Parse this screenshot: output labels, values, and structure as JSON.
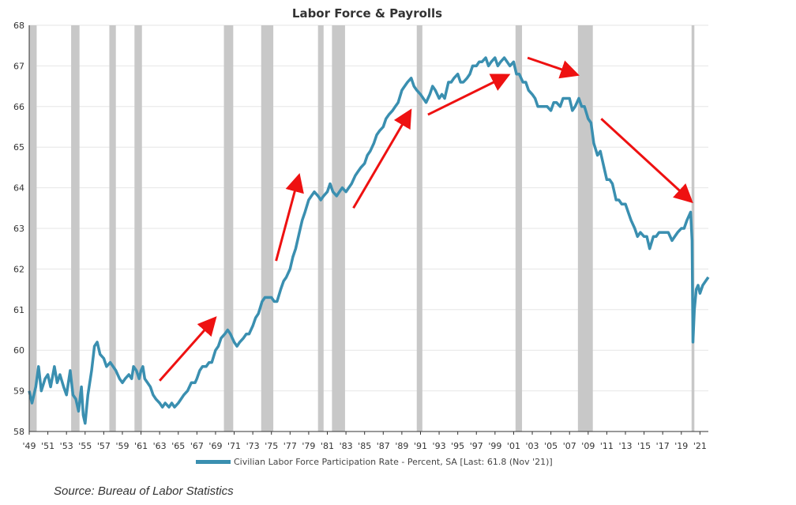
{
  "colors": {
    "line": "#3a8fb0",
    "recession": "#c8c8c8",
    "arrow": "#ee1111",
    "grid": "#e6e6e6",
    "axis": "#333333"
  },
  "source": "Source:  Bureau of Labor Statistics",
  "chart_data": {
    "type": "line",
    "title": "Labor Force & Payrolls",
    "xlabel": "",
    "ylabel": "",
    "xlim": [
      1949,
      2021.9
    ],
    "ylim": [
      58,
      68
    ],
    "y_ticks": [
      "58",
      "59",
      "60",
      "61",
      "62",
      "63",
      "64",
      "65",
      "66",
      "67",
      "68"
    ],
    "x_ticks": [
      {
        "year": 1949,
        "label": "'49"
      },
      {
        "year": 1951,
        "label": "'51"
      },
      {
        "year": 1953,
        "label": "'53"
      },
      {
        "year": 1955,
        "label": "'55"
      },
      {
        "year": 1957,
        "label": "'57"
      },
      {
        "year": 1959,
        "label": "'59"
      },
      {
        "year": 1961,
        "label": "'61"
      },
      {
        "year": 1963,
        "label": "'63"
      },
      {
        "year": 1965,
        "label": "'65"
      },
      {
        "year": 1967,
        "label": "'67"
      },
      {
        "year": 1969,
        "label": "'69"
      },
      {
        "year": 1971,
        "label": "'71"
      },
      {
        "year": 1973,
        "label": "'73"
      },
      {
        "year": 1975,
        "label": "'75"
      },
      {
        "year": 1977,
        "label": "'77"
      },
      {
        "year": 1979,
        "label": "'79"
      },
      {
        "year": 1981,
        "label": "'81"
      },
      {
        "year": 1983,
        "label": "'83"
      },
      {
        "year": 1985,
        "label": "'85"
      },
      {
        "year": 1987,
        "label": "'87"
      },
      {
        "year": 1989,
        "label": "'89"
      },
      {
        "year": 1991,
        "label": "'91"
      },
      {
        "year": 1993,
        "label": "'93"
      },
      {
        "year": 1995,
        "label": "'95"
      },
      {
        "year": 1997,
        "label": "'97"
      },
      {
        "year": 1999,
        "label": "'99"
      },
      {
        "year": 2001,
        "label": "'01"
      },
      {
        "year": 2003,
        "label": "'03"
      },
      {
        "year": 2005,
        "label": "'05"
      },
      {
        "year": 2007,
        "label": "'07"
      },
      {
        "year": 2009,
        "label": "'09"
      },
      {
        "year": 2011,
        "label": "'11"
      },
      {
        "year": 2013,
        "label": "'13"
      },
      {
        "year": 2015,
        "label": "'15"
      },
      {
        "year": 2017,
        "label": "'17"
      },
      {
        "year": 2019,
        "label": "'19"
      },
      {
        "year": 2021,
        "label": "'21"
      }
    ],
    "recessions": [
      [
        1949.0,
        1949.8
      ],
      [
        1953.5,
        1954.4
      ],
      [
        1957.6,
        1958.3
      ],
      [
        1960.3,
        1961.1
      ],
      [
        1969.9,
        1970.9
      ],
      [
        1973.9,
        1975.2
      ],
      [
        1980.0,
        1980.6
      ],
      [
        1981.5,
        1982.9
      ],
      [
        1990.6,
        1991.2
      ],
      [
        2001.2,
        2001.9
      ],
      [
        2007.9,
        2009.5
      ],
      [
        2020.1,
        2020.4
      ]
    ],
    "series": [
      {
        "name": "Civilian Labor Force Participation Rate - Percent, SA [Last: 61.8 (Nov '21)]",
        "points": [
          [
            1949.0,
            59.0
          ],
          [
            1949.3,
            58.7
          ],
          [
            1949.7,
            59.1
          ],
          [
            1950.0,
            59.6
          ],
          [
            1950.3,
            59.0
          ],
          [
            1950.7,
            59.3
          ],
          [
            1951.0,
            59.4
          ],
          [
            1951.3,
            59.1
          ],
          [
            1951.7,
            59.6
          ],
          [
            1952.0,
            59.2
          ],
          [
            1952.3,
            59.4
          ],
          [
            1952.7,
            59.1
          ],
          [
            1953.0,
            58.9
          ],
          [
            1953.4,
            59.5
          ],
          [
            1953.7,
            58.9
          ],
          [
            1954.0,
            58.8
          ],
          [
            1954.3,
            58.5
          ],
          [
            1954.6,
            59.1
          ],
          [
            1954.8,
            58.4
          ],
          [
            1955.0,
            58.2
          ],
          [
            1955.3,
            58.9
          ],
          [
            1955.7,
            59.5
          ],
          [
            1956.0,
            60.1
          ],
          [
            1956.3,
            60.2
          ],
          [
            1956.6,
            59.9
          ],
          [
            1957.0,
            59.8
          ],
          [
            1957.3,
            59.6
          ],
          [
            1957.7,
            59.7
          ],
          [
            1958.0,
            59.6
          ],
          [
            1958.3,
            59.5
          ],
          [
            1958.7,
            59.3
          ],
          [
            1959.0,
            59.2
          ],
          [
            1959.3,
            59.3
          ],
          [
            1959.7,
            59.4
          ],
          [
            1960.0,
            59.3
          ],
          [
            1960.2,
            59.6
          ],
          [
            1960.5,
            59.5
          ],
          [
            1960.8,
            59.3
          ],
          [
            1961.0,
            59.5
          ],
          [
            1961.2,
            59.6
          ],
          [
            1961.4,
            59.3
          ],
          [
            1961.7,
            59.2
          ],
          [
            1962.0,
            59.1
          ],
          [
            1962.3,
            58.9
          ],
          [
            1962.6,
            58.8
          ],
          [
            1963.0,
            58.7
          ],
          [
            1963.3,
            58.6
          ],
          [
            1963.6,
            58.7
          ],
          [
            1964.0,
            58.6
          ],
          [
            1964.3,
            58.7
          ],
          [
            1964.6,
            58.6
          ],
          [
            1965.0,
            58.7
          ],
          [
            1965.3,
            58.8
          ],
          [
            1965.6,
            58.9
          ],
          [
            1966.0,
            59.0
          ],
          [
            1966.4,
            59.2
          ],
          [
            1966.8,
            59.2
          ],
          [
            1967.0,
            59.3
          ],
          [
            1967.3,
            59.5
          ],
          [
            1967.6,
            59.6
          ],
          [
            1968.0,
            59.6
          ],
          [
            1968.3,
            59.7
          ],
          [
            1968.6,
            59.7
          ],
          [
            1969.0,
            60.0
          ],
          [
            1969.3,
            60.1
          ],
          [
            1969.6,
            60.3
          ],
          [
            1970.0,
            60.4
          ],
          [
            1970.3,
            60.5
          ],
          [
            1970.6,
            60.4
          ],
          [
            1971.0,
            60.2
          ],
          [
            1971.3,
            60.1
          ],
          [
            1971.6,
            60.2
          ],
          [
            1972.0,
            60.3
          ],
          [
            1972.3,
            60.4
          ],
          [
            1972.6,
            60.4
          ],
          [
            1973.0,
            60.6
          ],
          [
            1973.3,
            60.8
          ],
          [
            1973.6,
            60.9
          ],
          [
            1974.0,
            61.2
          ],
          [
            1974.3,
            61.3
          ],
          [
            1974.6,
            61.3
          ],
          [
            1975.0,
            61.3
          ],
          [
            1975.3,
            61.2
          ],
          [
            1975.6,
            61.2
          ],
          [
            1976.0,
            61.5
          ],
          [
            1976.3,
            61.7
          ],
          [
            1976.6,
            61.8
          ],
          [
            1977.0,
            62.0
          ],
          [
            1977.3,
            62.3
          ],
          [
            1977.6,
            62.5
          ],
          [
            1978.0,
            62.9
          ],
          [
            1978.3,
            63.2
          ],
          [
            1978.6,
            63.4
          ],
          [
            1979.0,
            63.7
          ],
          [
            1979.3,
            63.8
          ],
          [
            1979.6,
            63.9
          ],
          [
            1980.0,
            63.8
          ],
          [
            1980.3,
            63.7
          ],
          [
            1980.6,
            63.8
          ],
          [
            1981.0,
            63.9
          ],
          [
            1981.3,
            64.1
          ],
          [
            1981.6,
            63.9
          ],
          [
            1982.0,
            63.8
          ],
          [
            1982.3,
            63.9
          ],
          [
            1982.6,
            64.0
          ],
          [
            1983.0,
            63.9
          ],
          [
            1983.3,
            64.0
          ],
          [
            1983.6,
            64.1
          ],
          [
            1984.0,
            64.3
          ],
          [
            1984.3,
            64.4
          ],
          [
            1984.6,
            64.5
          ],
          [
            1985.0,
            64.6
          ],
          [
            1985.3,
            64.8
          ],
          [
            1985.6,
            64.9
          ],
          [
            1986.0,
            65.1
          ],
          [
            1986.3,
            65.3
          ],
          [
            1986.6,
            65.4
          ],
          [
            1987.0,
            65.5
          ],
          [
            1987.3,
            65.7
          ],
          [
            1987.6,
            65.8
          ],
          [
            1988.0,
            65.9
          ],
          [
            1988.3,
            66.0
          ],
          [
            1988.6,
            66.1
          ],
          [
            1989.0,
            66.4
          ],
          [
            1989.3,
            66.5
          ],
          [
            1989.6,
            66.6
          ],
          [
            1990.0,
            66.7
          ],
          [
            1990.3,
            66.5
          ],
          [
            1990.6,
            66.4
          ],
          [
            1991.0,
            66.3
          ],
          [
            1991.3,
            66.2
          ],
          [
            1991.6,
            66.1
          ],
          [
            1992.0,
            66.3
          ],
          [
            1992.3,
            66.5
          ],
          [
            1992.6,
            66.4
          ],
          [
            1993.0,
            66.2
          ],
          [
            1993.3,
            66.3
          ],
          [
            1993.6,
            66.2
          ],
          [
            1994.0,
            66.6
          ],
          [
            1994.3,
            66.6
          ],
          [
            1994.6,
            66.7
          ],
          [
            1995.0,
            66.8
          ],
          [
            1995.3,
            66.6
          ],
          [
            1995.6,
            66.6
          ],
          [
            1996.0,
            66.7
          ],
          [
            1996.3,
            66.8
          ],
          [
            1996.6,
            67.0
          ],
          [
            1997.0,
            67.0
          ],
          [
            1997.3,
            67.1
          ],
          [
            1997.6,
            67.1
          ],
          [
            1998.0,
            67.2
          ],
          [
            1998.3,
            67.0
          ],
          [
            1998.6,
            67.1
          ],
          [
            1999.0,
            67.2
          ],
          [
            1999.3,
            67.0
          ],
          [
            1999.6,
            67.1
          ],
          [
            2000.0,
            67.2
          ],
          [
            2000.3,
            67.1
          ],
          [
            2000.6,
            67.0
          ],
          [
            2001.0,
            67.1
          ],
          [
            2001.3,
            66.8
          ],
          [
            2001.6,
            66.8
          ],
          [
            2002.0,
            66.6
          ],
          [
            2002.3,
            66.6
          ],
          [
            2002.6,
            66.4
          ],
          [
            2003.0,
            66.3
          ],
          [
            2003.3,
            66.2
          ],
          [
            2003.6,
            66.0
          ],
          [
            2004.0,
            66.0
          ],
          [
            2004.3,
            66.0
          ],
          [
            2004.6,
            66.0
          ],
          [
            2005.0,
            65.9
          ],
          [
            2005.3,
            66.1
          ],
          [
            2005.6,
            66.1
          ],
          [
            2006.0,
            66.0
          ],
          [
            2006.3,
            66.2
          ],
          [
            2006.6,
            66.2
          ],
          [
            2007.0,
            66.2
          ],
          [
            2007.3,
            65.9
          ],
          [
            2007.6,
            66.0
          ],
          [
            2008.0,
            66.2
          ],
          [
            2008.3,
            66.0
          ],
          [
            2008.6,
            66.0
          ],
          [
            2009.0,
            65.7
          ],
          [
            2009.3,
            65.6
          ],
          [
            2009.6,
            65.1
          ],
          [
            2010.0,
            64.8
          ],
          [
            2010.3,
            64.9
          ],
          [
            2010.6,
            64.6
          ],
          [
            2011.0,
            64.2
          ],
          [
            2011.3,
            64.2
          ],
          [
            2011.6,
            64.1
          ],
          [
            2012.0,
            63.7
          ],
          [
            2012.3,
            63.7
          ],
          [
            2012.6,
            63.6
          ],
          [
            2013.0,
            63.6
          ],
          [
            2013.3,
            63.4
          ],
          [
            2013.6,
            63.2
          ],
          [
            2014.0,
            63.0
          ],
          [
            2014.3,
            62.8
          ],
          [
            2014.6,
            62.9
          ],
          [
            2015.0,
            62.8
          ],
          [
            2015.3,
            62.8
          ],
          [
            2015.6,
            62.5
          ],
          [
            2016.0,
            62.8
          ],
          [
            2016.3,
            62.8
          ],
          [
            2016.6,
            62.9
          ],
          [
            2017.0,
            62.9
          ],
          [
            2017.3,
            62.9
          ],
          [
            2017.6,
            62.9
          ],
          [
            2018.0,
            62.7
          ],
          [
            2018.3,
            62.8
          ],
          [
            2018.6,
            62.9
          ],
          [
            2019.0,
            63.0
          ],
          [
            2019.3,
            63.0
          ],
          [
            2019.6,
            63.2
          ],
          [
            2020.0,
            63.4
          ],
          [
            2020.15,
            62.7
          ],
          [
            2020.25,
            60.2
          ],
          [
            2020.4,
            61.0
          ],
          [
            2020.6,
            61.5
          ],
          [
            2020.8,
            61.6
          ],
          [
            2021.0,
            61.4
          ],
          [
            2021.3,
            61.6
          ],
          [
            2021.6,
            61.7
          ],
          [
            2021.9,
            61.8
          ]
        ]
      }
    ],
    "arrows": [
      [
        [
          1963.0,
          59.25
        ],
        [
          1968.8,
          60.75
        ]
      ],
      [
        [
          1975.5,
          62.2
        ],
        [
          1977.9,
          64.25
        ]
      ],
      [
        [
          1983.8,
          63.5
        ],
        [
          1989.8,
          65.85
        ]
      ],
      [
        [
          1991.8,
          65.8
        ],
        [
          2000.2,
          66.75
        ]
      ],
      [
        [
          2002.5,
          67.2
        ],
        [
          2007.6,
          66.8
        ]
      ],
      [
        [
          2010.4,
          65.7
        ],
        [
          2019.9,
          63.7
        ]
      ]
    ],
    "grid": "horizontal",
    "legend_position": "bottom"
  }
}
